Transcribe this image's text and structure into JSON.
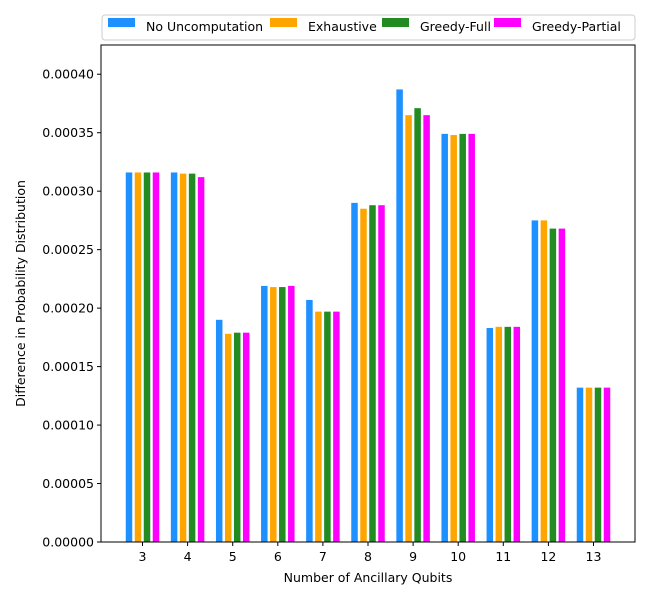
{
  "chart_data": {
    "type": "bar",
    "title": "",
    "xlabel": "Number of Ancillary Qubits",
    "ylabel": "Difference in Probability Distribution",
    "categories": [
      "3",
      "4",
      "5",
      "6",
      "7",
      "8",
      "9",
      "10",
      "11",
      "12",
      "13"
    ],
    "ylim": [
      0,
      0.000425
    ],
    "yticks": [
      "0.00000",
      "0.00005",
      "0.00010",
      "0.00015",
      "0.00020",
      "0.00025",
      "0.00030",
      "0.00035",
      "0.00040"
    ],
    "grid": false,
    "legend_position": "top",
    "series": [
      {
        "name": "No Uncomputation",
        "color": "#1e90ff",
        "values": [
          0.000316,
          0.000316,
          0.00019,
          0.000219,
          0.000207,
          0.00029,
          0.000387,
          0.000349,
          0.000183,
          0.000275,
          0.000132
        ]
      },
      {
        "name": "Exhaustive",
        "color": "#ffa500",
        "values": [
          0.000316,
          0.000315,
          0.000178,
          0.000218,
          0.000197,
          0.000285,
          0.000365,
          0.000348,
          0.000184,
          0.000275,
          0.000132
        ]
      },
      {
        "name": "Greedy-Full",
        "color": "#228b22",
        "values": [
          0.000316,
          0.000315,
          0.000179,
          0.000218,
          0.000197,
          0.000288,
          0.000371,
          0.000349,
          0.000184,
          0.000268,
          0.000132
        ]
      },
      {
        "name": "Greedy-Partial",
        "color": "#ff00ff",
        "values": [
          0.000316,
          0.000312,
          0.000179,
          0.000219,
          0.000197,
          0.000288,
          0.000365,
          0.000349,
          0.000184,
          0.000268,
          0.000132
        ]
      }
    ]
  }
}
